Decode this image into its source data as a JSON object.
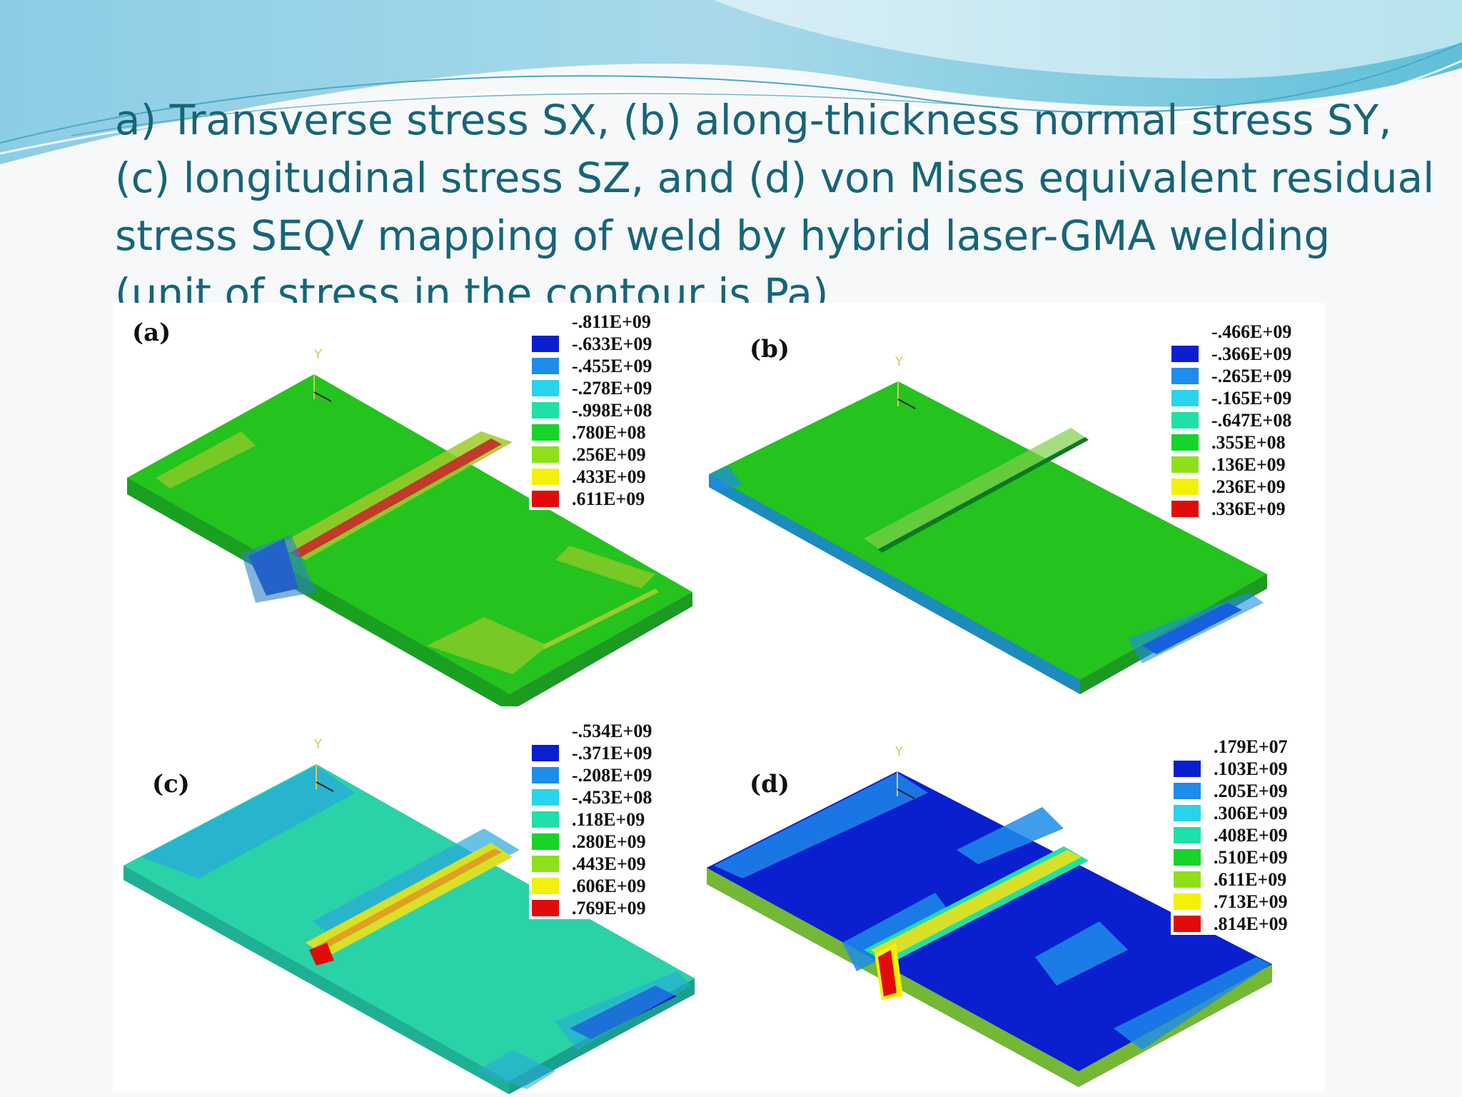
{
  "slide": {
    "title": "a) Transverse stress SX, (b) along-thickness normal stress SY, (c) longitudinal stress SZ, and (d) von Mises equivalent residual stress SEQV mapping of weld by hybrid laser-GMA welding (unit of stress in the contour is Pa)"
  },
  "colors": {
    "title": "#176577",
    "contour_scale": [
      "#0a1fd0",
      "#1e8cea",
      "#28d4ec",
      "#1fe0a8",
      "#17d42a",
      "#8ee018",
      "#f5f00a",
      "#e20b0b"
    ]
  },
  "panels": [
    {
      "label": "(a)",
      "axis_label": "Y",
      "legend_values": [
        ".811E+09",
        ".633E+09",
        ".455E+09",
        ".278E+09",
        ".998E+08",
        ".780E+08",
        ".256E+09",
        ".433E+09",
        ".611E+09"
      ],
      "legend_signs": [
        "-",
        "-",
        "-",
        "-",
        "-",
        "",
        "",
        "",
        ""
      ]
    },
    {
      "label": "(b)",
      "axis_label": "Y",
      "legend_values": [
        ".466E+09",
        ".366E+09",
        ".265E+09",
        ".165E+09",
        ".647E+08",
        ".355E+08",
        ".136E+09",
        ".236E+09",
        ".336E+09"
      ],
      "legend_signs": [
        "-",
        "-",
        "-",
        "-",
        "-",
        "",
        "",
        "",
        ""
      ]
    },
    {
      "label": "(c)",
      "axis_label": "Y",
      "legend_values": [
        ".534E+09",
        ".371E+09",
        ".208E+09",
        ".453E+08",
        ".118E+09",
        ".280E+09",
        ".443E+09",
        ".606E+09",
        ".769E+09"
      ],
      "legend_signs": [
        "-",
        "-",
        "-",
        "-",
        "",
        "",
        "",
        "",
        ""
      ]
    },
    {
      "label": "(d)",
      "axis_label": "Y",
      "legend_values": [
        ".179E+07",
        ".103E+09",
        ".205E+09",
        ".306E+09",
        ".408E+09",
        ".510E+09",
        ".611E+09",
        ".713E+09",
        ".814E+09"
      ],
      "legend_signs": [
        "",
        "",
        "",
        "",
        "",
        "",
        "",
        "",
        ""
      ]
    }
  ]
}
